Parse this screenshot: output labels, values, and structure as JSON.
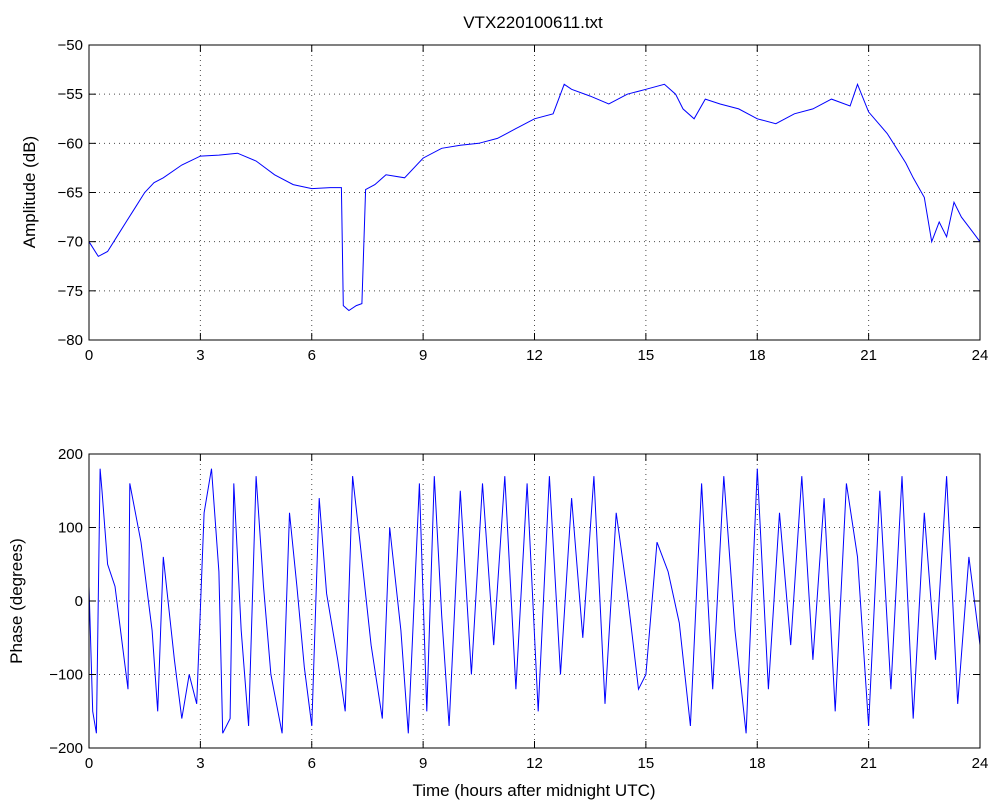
{
  "chart_data": [
    {
      "type": "line",
      "title": "VTX220100611.txt",
      "xlabel": "",
      "ylabel": "Amplitude (dB)",
      "xlim": [
        0,
        24
      ],
      "ylim": [
        -80,
        -50
      ],
      "xticks": [
        "0",
        "3",
        "6",
        "9",
        "12",
        "15",
        "18",
        "21",
        "24"
      ],
      "yticks": [
        "−80",
        "−75",
        "−70",
        "−65",
        "−60",
        "−55",
        "−50"
      ],
      "grid": true,
      "color": "#0000ff",
      "series": [
        {
          "x": [
            0,
            0.25,
            0.5,
            0.75,
            1,
            1.25,
            1.5,
            1.75,
            2,
            2.5,
            3,
            3.5,
            4,
            4.5,
            5,
            5.5,
            6,
            6.5,
            6.8,
            6.85,
            7.0,
            7.2,
            7.35,
            7.45,
            7.7,
            8,
            8.5,
            9,
            9.5,
            10,
            10.5,
            11,
            11.5,
            12,
            12.5,
            12.8,
            13,
            13.5,
            14,
            14.5,
            15,
            15.5,
            15.8,
            16,
            16.3,
            16.6,
            17,
            17.5,
            18,
            18.5,
            19,
            19.5,
            20,
            20.5,
            20.7,
            21,
            21.5,
            22,
            22.2,
            22.5,
            22.7,
            22.9,
            23.1,
            23.3,
            23.5,
            23.8,
            24
          ],
          "y": [
            -70,
            -71.5,
            -71,
            -69.5,
            -68,
            -66.5,
            -65,
            -64,
            -63.5,
            -62.2,
            -61.3,
            -61.2,
            -61.0,
            -61.8,
            -63.2,
            -64.2,
            -64.6,
            -64.5,
            -64.5,
            -76.5,
            -77,
            -76.5,
            -76.3,
            -64.7,
            -64.2,
            -63.2,
            -63.5,
            -61.5,
            -60.5,
            -60.2,
            -60,
            -59.5,
            -58.5,
            -57.5,
            -57,
            -54,
            -54.5,
            -55.2,
            -56,
            -55,
            -54.5,
            -54,
            -55,
            -56.5,
            -57.5,
            -55.5,
            -56,
            -56.5,
            -57.5,
            -58,
            -57,
            -56.5,
            -55.5,
            -56.2,
            -54,
            -56.8,
            -59,
            -62,
            -63.5,
            -65.5,
            -70,
            -68,
            -69.5,
            -66,
            -67.5,
            -69,
            -70
          ]
        }
      ]
    },
    {
      "type": "line",
      "title": "",
      "xlabel": "Time (hours after midnight UTC)",
      "ylabel": "Phase (degrees)",
      "xlim": [
        0,
        24
      ],
      "ylim": [
        -200,
        200
      ],
      "xticks": [
        "0",
        "3",
        "6",
        "9",
        "12",
        "15",
        "18",
        "21",
        "24"
      ],
      "yticks": [
        "−200",
        "−100",
        "0",
        "100",
        "200"
      ],
      "grid": true,
      "color": "#0000ff",
      "series": [
        {
          "x": [
            0,
            0.1,
            0.2,
            0.3,
            0.35,
            0.5,
            0.7,
            0.9,
            1.05,
            1.1,
            1.4,
            1.7,
            1.85,
            2.0,
            2.3,
            2.5,
            2.7,
            2.9,
            3.1,
            3.3,
            3.5,
            3.6,
            3.8,
            3.9,
            4.1,
            4.3,
            4.5,
            4.7,
            4.9,
            5.2,
            5.4,
            5.6,
            5.8,
            6.0,
            6.2,
            6.4,
            6.7,
            6.9,
            7.1,
            7.3,
            7.6,
            7.9,
            8.1,
            8.4,
            8.6,
            8.9,
            9.1,
            9.3,
            9.5,
            9.7,
            10.0,
            10.3,
            10.6,
            10.9,
            11.2,
            11.5,
            11.8,
            12.1,
            12.4,
            12.7,
            13.0,
            13.3,
            13.6,
            13.9,
            14.2,
            14.5,
            14.8,
            15.0,
            15.3,
            15.6,
            15.9,
            16.2,
            16.5,
            16.8,
            17.1,
            17.4,
            17.7,
            18.0,
            18.3,
            18.6,
            18.9,
            19.2,
            19.5,
            19.8,
            20.1,
            20.4,
            20.7,
            21.0,
            21.3,
            21.6,
            21.9,
            22.2,
            22.5,
            22.8,
            23.1,
            23.4,
            23.7,
            24.0
          ],
          "y": [
            20,
            -150,
            -180,
            180,
            150,
            50,
            20,
            -60,
            -120,
            160,
            80,
            -40,
            -150,
            60,
            -80,
            -160,
            -100,
            -140,
            120,
            180,
            40,
            -180,
            -160,
            160,
            -40,
            -170,
            170,
            20,
            -100,
            -180,
            120,
            20,
            -90,
            -170,
            140,
            10,
            -80,
            -150,
            170,
            80,
            -60,
            -160,
            100,
            -40,
            -180,
            160,
            -150,
            170,
            -20,
            -170,
            150,
            -100,
            160,
            -60,
            170,
            -120,
            160,
            -150,
            170,
            -100,
            140,
            -50,
            170,
            -140,
            120,
            10,
            -120,
            -100,
            80,
            40,
            -30,
            -170,
            160,
            -120,
            170,
            -40,
            -180,
            180,
            -120,
            120,
            -60,
            170,
            -80,
            140,
            -150,
            160,
            60,
            -170,
            150,
            -120,
            170,
            -160,
            120,
            -80,
            170,
            -140,
            60,
            -60
          ]
        }
      ]
    }
  ]
}
